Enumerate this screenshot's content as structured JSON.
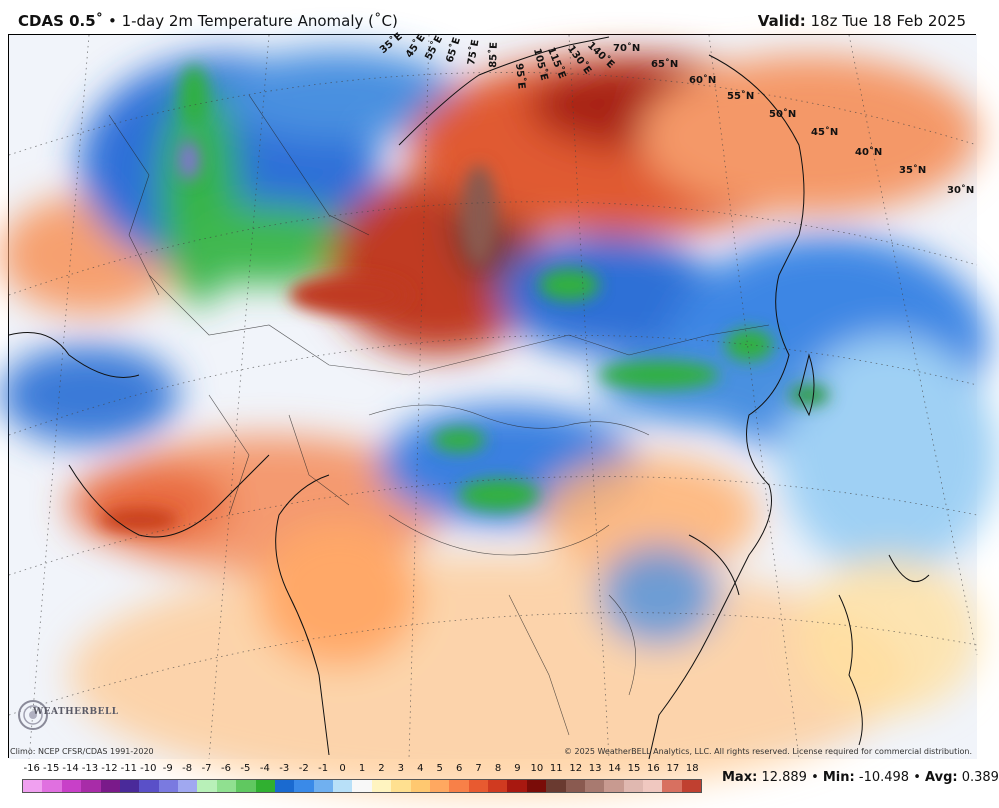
{
  "header": {
    "model": "CDAS 0.5˚",
    "separator": " • ",
    "product": "1-day 2m Temperature Anomaly (˚C)",
    "valid_label": "Valid:",
    "valid_time": "18z Tue 18 Feb 2025"
  },
  "lat_labels": [
    "30˚N",
    "35˚N",
    "40˚N",
    "45˚N",
    "50˚N",
    "55˚N",
    "60˚N",
    "65˚N",
    "70˚N"
  ],
  "lon_labels": [
    "35˚E",
    "45˚E",
    "55˚E",
    "65˚E",
    "75˚E",
    "85˚E",
    "95˚E",
    "105˚E",
    "115˚E",
    "130˚E",
    "140˚E"
  ],
  "logo": {
    "text": "WEATHERBELL"
  },
  "footer": {
    "climo": "Climo: NCEP CFSR/CDAS 1991-2020",
    "copyright": "© 2025 WeatherBELL Analytics, LLC. All rights reserved. License required for commercial distribution."
  },
  "legend": {
    "ticks": [
      "-16",
      "-15",
      "-14",
      "-13",
      "-12",
      "-11",
      "-10",
      "-9",
      "-8",
      "-7",
      "-6",
      "-5",
      "-4",
      "-3",
      "-2",
      "-1",
      "0",
      "1",
      "2",
      "3",
      "4",
      "5",
      "6",
      "7",
      "8",
      "9",
      "10",
      "11",
      "12",
      "13",
      "14",
      "15",
      "16",
      "17",
      "18"
    ],
    "colors": [
      "#f0a0f0",
      "#e070e0",
      "#c840c8",
      "#a82ca8",
      "#7a1a8a",
      "#4a2a9a",
      "#5a50c8",
      "#7a7ae0",
      "#a0a8f0",
      "#b8f0b8",
      "#90e090",
      "#60c860",
      "#30b030",
      "#1a6ad0",
      "#3a8ae8",
      "#70b0f0",
      "#b8e0f8",
      "#f8f8f8",
      "#fff4c0",
      "#ffe090",
      "#ffc870",
      "#ffa860",
      "#f88048",
      "#e85a30",
      "#d03a20",
      "#a81810",
      "#7a0c08",
      "#6a3a30",
      "#8a5a50",
      "#a87a70",
      "#c89a90",
      "#e0b8b0",
      "#f0c8c0",
      "#d87060",
      "#c04030"
    ]
  },
  "stats": {
    "max_label": "Max:",
    "max": "12.889",
    "min_label": "Min:",
    "min": "-10.498",
    "avg_label": "Avg:",
    "avg": "0.389",
    "sep": " • "
  },
  "chart_data": {
    "type": "heatmap",
    "title": "1-day 2m Temperature Anomaly (˚C)",
    "field": "2m temperature anomaly",
    "units": "˚C",
    "colorbar_range": [
      -16,
      18
    ],
    "max": 12.889,
    "min": -10.498,
    "avg": 0.389
  }
}
